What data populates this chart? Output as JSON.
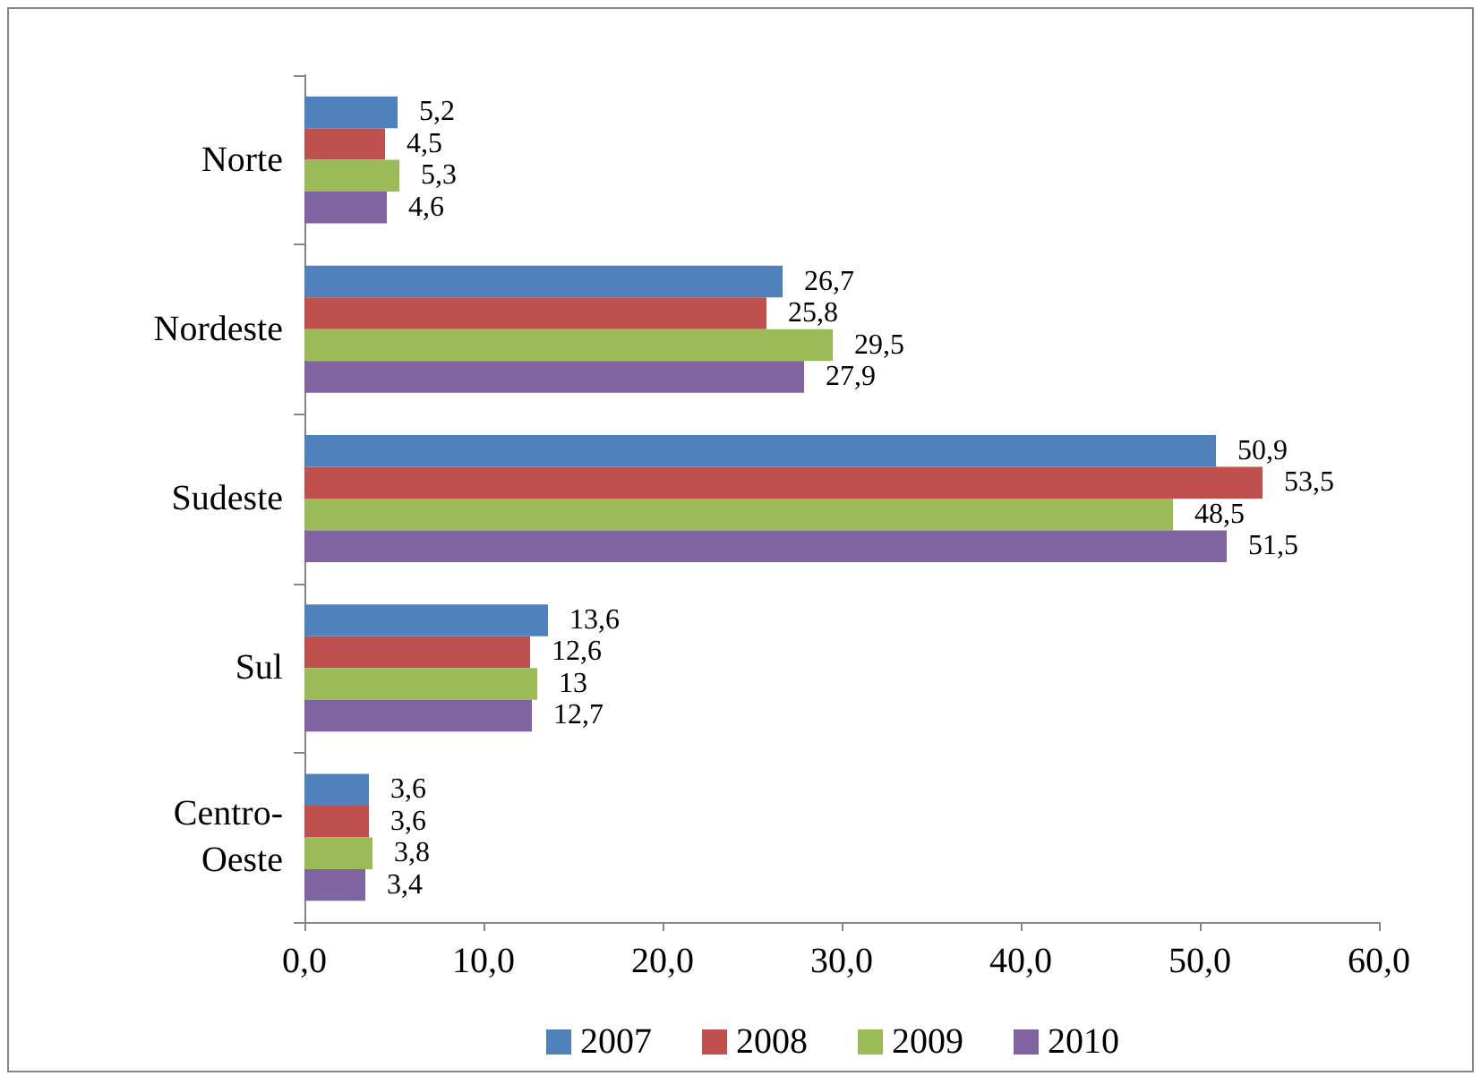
{
  "chart_data": {
    "type": "bar",
    "orientation": "horizontal",
    "categories": [
      "Norte",
      "Nordeste",
      "Sudeste",
      "Sul",
      "Centro-\nOeste"
    ],
    "series": [
      {
        "name": "2007",
        "color": "#4f81bd",
        "values": [
          5.2,
          26.7,
          50.9,
          13.6,
          3.6
        ],
        "value_labels": [
          "5,2",
          "26,7",
          "50,9",
          "13,6",
          "3,6"
        ]
      },
      {
        "name": "2008",
        "color": "#c0504d",
        "values": [
          4.5,
          25.8,
          53.5,
          12.6,
          3.6
        ],
        "value_labels": [
          "4,5",
          "25,8",
          "53,5",
          "12,6",
          "3,6"
        ]
      },
      {
        "name": "2009",
        "color": "#9bbb59",
        "values": [
          5.3,
          29.5,
          48.5,
          13,
          3.8
        ],
        "value_labels": [
          "5,3",
          "29,5",
          "48,5",
          "13",
          "3,8"
        ]
      },
      {
        "name": "2010",
        "color": "#8064a2",
        "values": [
          4.6,
          27.9,
          51.5,
          12.7,
          3.4
        ],
        "value_labels": [
          "4,6",
          "27,9",
          "51,5",
          "12,7",
          "3,4"
        ]
      }
    ],
    "xlim": [
      0,
      60
    ],
    "xticks": [
      {
        "value": 0,
        "label": "0,0"
      },
      {
        "value": 10,
        "label": "10,0"
      },
      {
        "value": 20,
        "label": "20,0"
      },
      {
        "value": 30,
        "label": "30,0"
      },
      {
        "value": 40,
        "label": "40,0"
      },
      {
        "value": 50,
        "label": "50,0"
      },
      {
        "value": 60,
        "label": "60,0"
      }
    ],
    "grid": false,
    "legend": "bottom"
  }
}
